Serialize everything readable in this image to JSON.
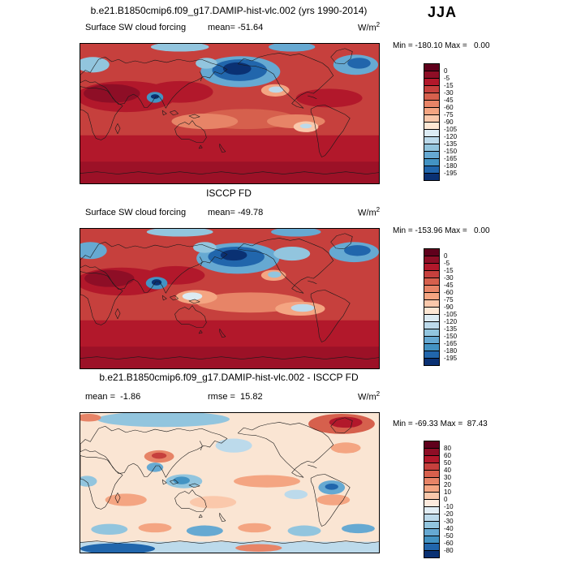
{
  "season_label": "JJA",
  "units": {
    "base": "W/m",
    "exp": "2"
  },
  "panels": [
    {
      "title": "b.e21.B1850cmip6.f09_g17.DAMIP-hist-vlc.002 (yrs 1990-2014)",
      "sub_left": "Surface SW cloud forcing",
      "sub_mid": "mean= -51.64",
      "minmax": "Min = -180.10 Max =   0.00"
    },
    {
      "title": "ISCCP FD",
      "sub_left": "Surface SW cloud forcing",
      "sub_mid": "mean= -49.78",
      "minmax": "Min = -153.96 Max =   0.00"
    },
    {
      "title": "b.e21.B1850cmip6.f09_g17.DAMIP-hist-vlc.002 - ISCCP FD",
      "sub_left": "mean =  -1.86",
      "sub_mid": "rmse =  15.82",
      "minmax": "Min = -69.33 Max =  87.43"
    }
  ],
  "colorbars": [
    {
      "labels": [
        "0",
        "-5",
        "-15",
        "-30",
        "-45",
        "-60",
        "-75",
        "-90",
        "-105",
        "-120",
        "-135",
        "-150",
        "-165",
        "-180",
        "-195"
      ],
      "colors": [
        "#60001c",
        "#8e0e26",
        "#b2182b",
        "#c6403d",
        "#d6604d",
        "#e78467",
        "#f4a582",
        "#fac8ab",
        "#fde7d4",
        "#dcebf3",
        "#bcdaeb",
        "#92c5de",
        "#66a9d2",
        "#4393c3",
        "#2166ac",
        "#0a3173"
      ]
    },
    {
      "labels": [
        "0",
        "-5",
        "-15",
        "-30",
        "-45",
        "-60",
        "-75",
        "-90",
        "-105",
        "-120",
        "-135",
        "-150",
        "-165",
        "-180",
        "-195"
      ],
      "colors": [
        "#60001c",
        "#8e0e26",
        "#b2182b",
        "#c6403d",
        "#d6604d",
        "#e78467",
        "#f4a582",
        "#fac8ab",
        "#fde7d4",
        "#dcebf3",
        "#bcdaeb",
        "#92c5de",
        "#66a9d2",
        "#4393c3",
        "#2166ac",
        "#0a3173"
      ]
    },
    {
      "labels": [
        "80",
        "60",
        "50",
        "40",
        "30",
        "20",
        "10",
        "0",
        "-10",
        "-20",
        "-30",
        "-40",
        "-50",
        "-60",
        "-80"
      ],
      "colors": [
        "#60001c",
        "#8e0e26",
        "#b2182b",
        "#c6403d",
        "#d6604d",
        "#e78467",
        "#f4a582",
        "#fac8ab",
        "#fdeadd",
        "#e2eef5",
        "#bcdaeb",
        "#92c5de",
        "#66a9d2",
        "#4393c3",
        "#2166ac",
        "#0a3173"
      ]
    }
  ],
  "chart_data": [
    {
      "type": "heatmap",
      "subtype": "global filled-contour map, cylindrical projection, lon 0-360, lat 90N-90S",
      "title": "b.e21.B1850cmip6.f09_g17.DAMIP-hist-vlc.002 (yrs 1990-2014)",
      "season": "JJA",
      "variable": "Surface SW cloud forcing",
      "units": "W/m2",
      "stats": {
        "mean": -51.64,
        "min": -180.1,
        "max": 0.0
      },
      "contour_levels": [
        0,
        -5,
        -15,
        -30,
        -45,
        -60,
        -75,
        -90,
        -105,
        -120,
        -135,
        -150,
        -165,
        -180,
        -195
      ],
      "legend_position": "right vertical colorbar",
      "palette": "diverging red(near 0) to dark blue(strongly negative); reds dominate tropics/subtropics, deep blue cells over N Pacific, N Atlantic and Bay of Bengal"
    },
    {
      "type": "heatmap",
      "subtype": "global filled-contour map, cylindrical projection, lon 0-360, lat 90N-90S",
      "title": "ISCCP FD",
      "season": "JJA",
      "variable": "Surface SW cloud forcing",
      "units": "W/m2",
      "stats": {
        "mean": -49.78,
        "min": -153.96,
        "max": 0.0
      },
      "contour_levels": [
        0,
        -5,
        -15,
        -30,
        -45,
        -60,
        -75,
        -90,
        -105,
        -120,
        -135,
        -150,
        -165,
        -180,
        -195
      ],
      "legend_position": "right vertical colorbar",
      "palette": "same diverging red-blue palette as model panel; observational field with broader light-blue northern mid-latitudes"
    },
    {
      "type": "heatmap",
      "subtype": "global filled-contour difference map, cylindrical projection, lon 0-360, lat 90N-90S",
      "title": "b.e21.B1850cmip6.f09_g17.DAMIP-hist-vlc.002 - ISCCP FD",
      "season": "JJA",
      "variable": "Surface SW cloud forcing difference (model minus obs)",
      "units": "W/m2",
      "stats": {
        "mean": -1.86,
        "rmse": 15.82,
        "min": -69.33,
        "max": 87.43
      },
      "contour_levels": [
        80,
        60,
        50,
        40,
        30,
        20,
        10,
        0,
        -10,
        -20,
        -30,
        -40,
        -50,
        -60,
        -80
      ],
      "legend_position": "right vertical colorbar",
      "palette": "diverging red(positive) / white(zero) / blue(negative); mostly pale field with red anomaly over Arctic N-Atlantic and Tibet, blue over Amazon, warm pool and Antarctic margin"
    }
  ]
}
